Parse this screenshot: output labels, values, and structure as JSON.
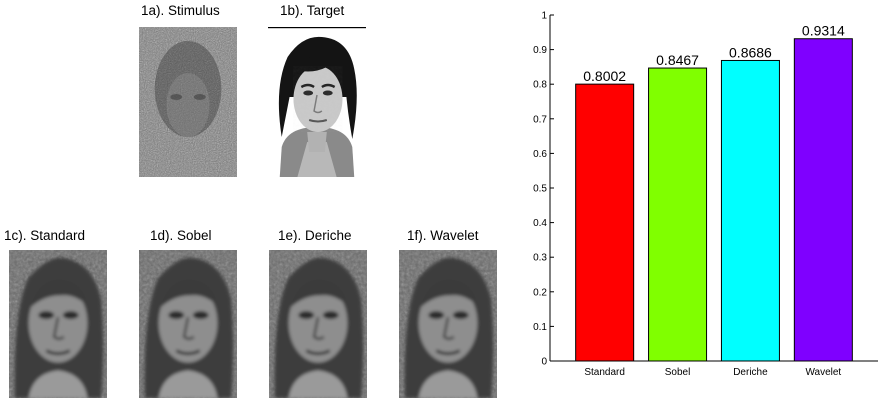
{
  "panels": [
    {
      "id": "1a",
      "title": "1a). Stimulus",
      "variant": "noise"
    },
    {
      "id": "1b",
      "title": "1b). Target",
      "variant": "photo"
    },
    {
      "id": "1c",
      "title": "1c). Standard",
      "variant": "recon"
    },
    {
      "id": "1d",
      "title": "1d). Sobel",
      "variant": "recon"
    },
    {
      "id": "1e",
      "title": "1e). Deriche",
      "variant": "recon"
    },
    {
      "id": "1f",
      "title": "1f). Wavelet",
      "variant": "recon"
    }
  ],
  "chart_data": {
    "type": "bar",
    "categories": [
      "Standard",
      "Sobel",
      "Deriche",
      "Wavelet"
    ],
    "values": [
      0.8002,
      0.8467,
      0.8686,
      0.9314
    ],
    "value_labels": [
      "0.8002",
      "0.8467",
      "0.8686",
      "0.9314"
    ],
    "colors": [
      "#ff0000",
      "#80ff00",
      "#00ffff",
      "#7f00ff"
    ],
    "ylim": [
      0,
      1
    ],
    "yticks": [
      0,
      0.1,
      0.2,
      0.3,
      0.4,
      0.5,
      0.6,
      0.7,
      0.8,
      0.9,
      1
    ],
    "ytick_labels": [
      "0",
      "0.1",
      "0.2",
      "0.3",
      "0.4",
      "0.5",
      "0.6",
      "0.7",
      "0.8",
      "0.9",
      "1"
    ],
    "title": "",
    "xlabel": "",
    "ylabel": "",
    "grid": false,
    "legend": "none"
  }
}
